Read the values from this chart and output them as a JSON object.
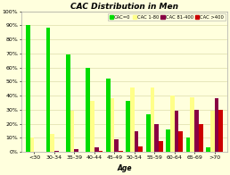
{
  "title": "CAC Distribution in Men",
  "xlabel": "Age",
  "categories": [
    "<30",
    "30-34",
    "35-39",
    "40-44",
    "45-49",
    "50-54",
    "55-59",
    "60-64",
    "65-69",
    ">70"
  ],
  "series": {
    "CAC=0": [
      90,
      88,
      69,
      60,
      52,
      36,
      27,
      16,
      10,
      3
    ],
    "CAC 1-80": [
      10,
      13,
      29,
      36,
      38,
      46,
      46,
      40,
      39,
      29
    ],
    "CAC 81-400": [
      0,
      1,
      2,
      3,
      9,
      15,
      20,
      29,
      30,
      38
    ],
    "CAC >400": [
      0,
      0,
      0,
      1,
      1,
      4,
      8,
      15,
      20,
      30
    ]
  },
  "colors": {
    "CAC=0": "#00dd00",
    "CAC 1-80": "#ffff88",
    "CAC 81-400": "#880044",
    "CAC >400": "#cc0000"
  },
  "ylim": [
    0,
    100
  ],
  "yticks": [
    0,
    10,
    20,
    30,
    40,
    50,
    60,
    70,
    80,
    90,
    100
  ],
  "yticklabels": [
    "0%",
    "10%",
    "20%",
    "30%",
    "40%",
    "50%",
    "60%",
    "70%",
    "80%",
    "90%",
    "100%"
  ],
  "background_color": "#ffffdd",
  "grid_color": "#ddddaa",
  "title_fontsize": 6.5,
  "axis_fontsize": 5.5,
  "tick_fontsize": 4.5,
  "legend_fontsize": 3.8
}
